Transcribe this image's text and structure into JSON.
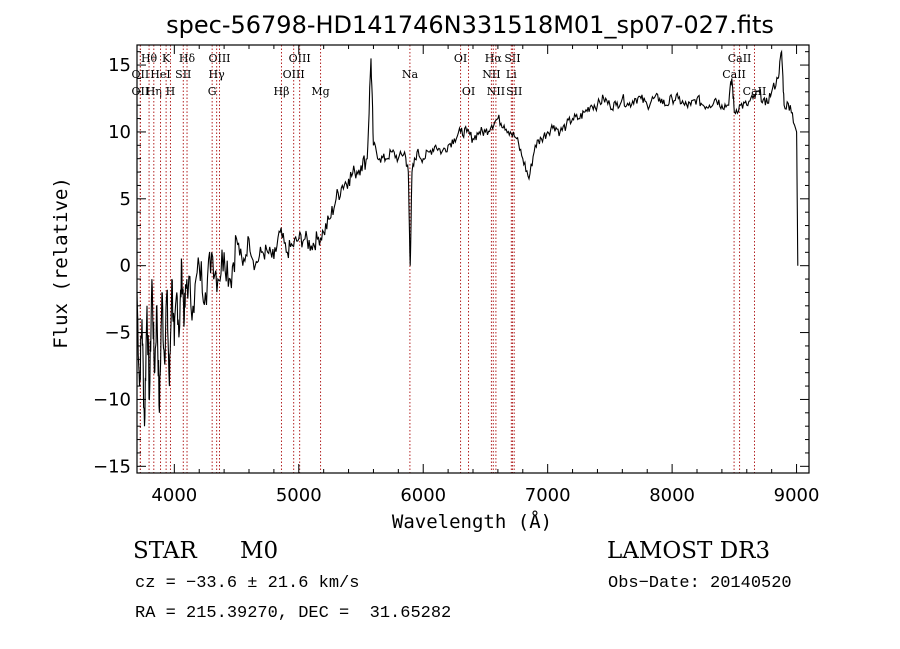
{
  "chart_data": {
    "type": "line",
    "title": "spec-56798-HD141746N331518M01_sp07-027.fits",
    "xlabel": "Wavelength (Å)",
    "ylabel": "Flux (relative)",
    "xlim": [
      3700,
      9100
    ],
    "ylim": [
      -15.5,
      16.5
    ],
    "xticks": [
      4000,
      5000,
      6000,
      7000,
      8000,
      9000
    ],
    "yticks": [
      -15,
      -10,
      -5,
      0,
      5,
      10,
      15
    ],
    "grid": false,
    "series": [
      {
        "name": "spectrum",
        "points": [
          [
            3700,
            -2
          ],
          [
            3720,
            -9
          ],
          [
            3740,
            -4
          ],
          [
            3760,
            -12
          ],
          [
            3780,
            -3
          ],
          [
            3800,
            -10
          ],
          [
            3820,
            -1
          ],
          [
            3840,
            -8
          ],
          [
            3860,
            -3
          ],
          [
            3880,
            -11
          ],
          [
            3900,
            -2
          ],
          [
            3920,
            -7
          ],
          [
            3940,
            -2
          ],
          [
            3960,
            -9
          ],
          [
            3980,
            -1
          ],
          [
            4000,
            -6
          ],
          [
            4020,
            -2
          ],
          [
            4040,
            -5
          ],
          [
            4060,
            0
          ],
          [
            4080,
            -4
          ],
          [
            4100,
            -1
          ],
          [
            4150,
            -3
          ],
          [
            4200,
            0
          ],
          [
            4250,
            -2
          ],
          [
            4300,
            1
          ],
          [
            4350,
            -1
          ],
          [
            4400,
            1
          ],
          [
            4450,
            -1
          ],
          [
            4500,
            2
          ],
          [
            4550,
            0
          ],
          [
            4600,
            2
          ],
          [
            4650,
            0
          ],
          [
            4700,
            1
          ],
          [
            4750,
            1
          ],
          [
            4800,
            0.5
          ],
          [
            4850,
            2.5
          ],
          [
            4900,
            1
          ],
          [
            4950,
            1.5
          ],
          [
            5000,
            2
          ],
          [
            5050,
            2
          ],
          [
            5100,
            1.5
          ],
          [
            5150,
            2
          ],
          [
            5200,
            2.5
          ],
          [
            5250,
            3.5
          ],
          [
            5300,
            5
          ],
          [
            5350,
            6
          ],
          [
            5400,
            6.5
          ],
          [
            5450,
            7
          ],
          [
            5500,
            7.5
          ],
          [
            5550,
            8
          ],
          [
            5580,
            15.5
          ],
          [
            5600,
            9
          ],
          [
            5650,
            8
          ],
          [
            5700,
            8
          ],
          [
            5750,
            8.5
          ],
          [
            5800,
            8
          ],
          [
            5850,
            8.5
          ],
          [
            5880,
            7
          ],
          [
            5895,
            0
          ],
          [
            5910,
            7
          ],
          [
            5950,
            8.5
          ],
          [
            6000,
            8
          ],
          [
            6050,
            8.5
          ],
          [
            6100,
            9
          ],
          [
            6150,
            8.5
          ],
          [
            6200,
            9
          ],
          [
            6250,
            9.5
          ],
          [
            6300,
            10
          ],
          [
            6350,
            10
          ],
          [
            6400,
            9.5
          ],
          [
            6450,
            10
          ],
          [
            6500,
            10
          ],
          [
            6550,
            10.5
          ],
          [
            6600,
            11
          ],
          [
            6650,
            10.5
          ],
          [
            6700,
            10
          ],
          [
            6750,
            9.5
          ],
          [
            6800,
            8
          ],
          [
            6850,
            6.5
          ],
          [
            6900,
            9
          ],
          [
            6950,
            9.5
          ],
          [
            7000,
            10
          ],
          [
            7050,
            10.5
          ],
          [
            7100,
            10
          ],
          [
            7150,
            10.5
          ],
          [
            7200,
            11
          ],
          [
            7250,
            11
          ],
          [
            7300,
            11.5
          ],
          [
            7350,
            12
          ],
          [
            7400,
            12
          ],
          [
            7450,
            12.5
          ],
          [
            7500,
            12
          ],
          [
            7550,
            12
          ],
          [
            7600,
            12.5
          ],
          [
            7650,
            12
          ],
          [
            7700,
            12.5
          ],
          [
            7750,
            12.5
          ],
          [
            7800,
            12
          ],
          [
            7850,
            12.5
          ],
          [
            7900,
            12.5
          ],
          [
            7950,
            12
          ],
          [
            8000,
            12.5
          ],
          [
            8050,
            12.5
          ],
          [
            8100,
            12
          ],
          [
            8150,
            12
          ],
          [
            8200,
            12.5
          ],
          [
            8250,
            12
          ],
          [
            8300,
            12
          ],
          [
            8350,
            12.5
          ],
          [
            8400,
            12
          ],
          [
            8450,
            12
          ],
          [
            8480,
            14
          ],
          [
            8500,
            11.5
          ],
          [
            8550,
            12
          ],
          [
            8600,
            12
          ],
          [
            8650,
            12.5
          ],
          [
            8700,
            13
          ],
          [
            8750,
            12
          ],
          [
            8800,
            13
          ],
          [
            8850,
            14
          ],
          [
            8880,
            16
          ],
          [
            8900,
            12
          ],
          [
            8950,
            12
          ],
          [
            9000,
            10
          ],
          [
            9010,
            0
          ]
        ]
      }
    ],
    "line_markers": [
      {
        "label": "Hθ",
        "x": 3797,
        "row": 1
      },
      {
        "label": "OII",
        "x": 3727,
        "row": 2
      },
      {
        "label": "OII",
        "x": 3727,
        "row": 3
      },
      {
        "label": "Hη",
        "x": 3835,
        "row": 3
      },
      {
        "label": "HeI",
        "x": 3889,
        "row": 2
      },
      {
        "label": "K",
        "x": 3934,
        "row": 1
      },
      {
        "label": "H",
        "x": 3969,
        "row": 3
      },
      {
        "label": "SII",
        "x": 4072,
        "row": 2
      },
      {
        "label": "Hδ",
        "x": 4102,
        "row": 1
      },
      {
        "label": "OIII",
        "x": 4363,
        "row": 1
      },
      {
        "label": "Hγ",
        "x": 4340,
        "row": 2
      },
      {
        "label": "G",
        "x": 4304,
        "row": 3
      },
      {
        "label": "Hβ",
        "x": 4861,
        "row": 3
      },
      {
        "label": "OIII",
        "x": 4959,
        "row": 2
      },
      {
        "label": "OIII",
        "x": 5007,
        "row": 1
      },
      {
        "label": "Mg",
        "x": 5175,
        "row": 3
      },
      {
        "label": "Na",
        "x": 5893,
        "row": 2
      },
      {
        "label": "OI",
        "x": 6300,
        "row": 1
      },
      {
        "label": "OI",
        "x": 6364,
        "row": 3
      },
      {
        "label": "Hα",
        "x": 6563,
        "row": 1
      },
      {
        "label": "NII",
        "x": 6548,
        "row": 2
      },
      {
        "label": "NII",
        "x": 6584,
        "row": 3
      },
      {
        "label": "SII",
        "x": 6717,
        "row": 1
      },
      {
        "label": "Li",
        "x": 6708,
        "row": 2
      },
      {
        "label": "SII",
        "x": 6731,
        "row": 3
      },
      {
        "label": "CaII",
        "x": 8542,
        "row": 1
      },
      {
        "label": "CaII",
        "x": 8498,
        "row": 2
      },
      {
        "label": "CaII",
        "x": 8662,
        "row": 3
      }
    ]
  },
  "info": {
    "class": "STAR",
    "subclass": "M0",
    "survey": "LAMOST DR3",
    "cz": "cz = −33.6 ± 21.6 km/s",
    "obs_date": "Obs−Date: 20140520",
    "coords": "RA = 215.39270, DEC =  31.65282"
  },
  "colors": {
    "spectrum": "#000000",
    "marker": "#b22222",
    "axis": "#000000"
  }
}
